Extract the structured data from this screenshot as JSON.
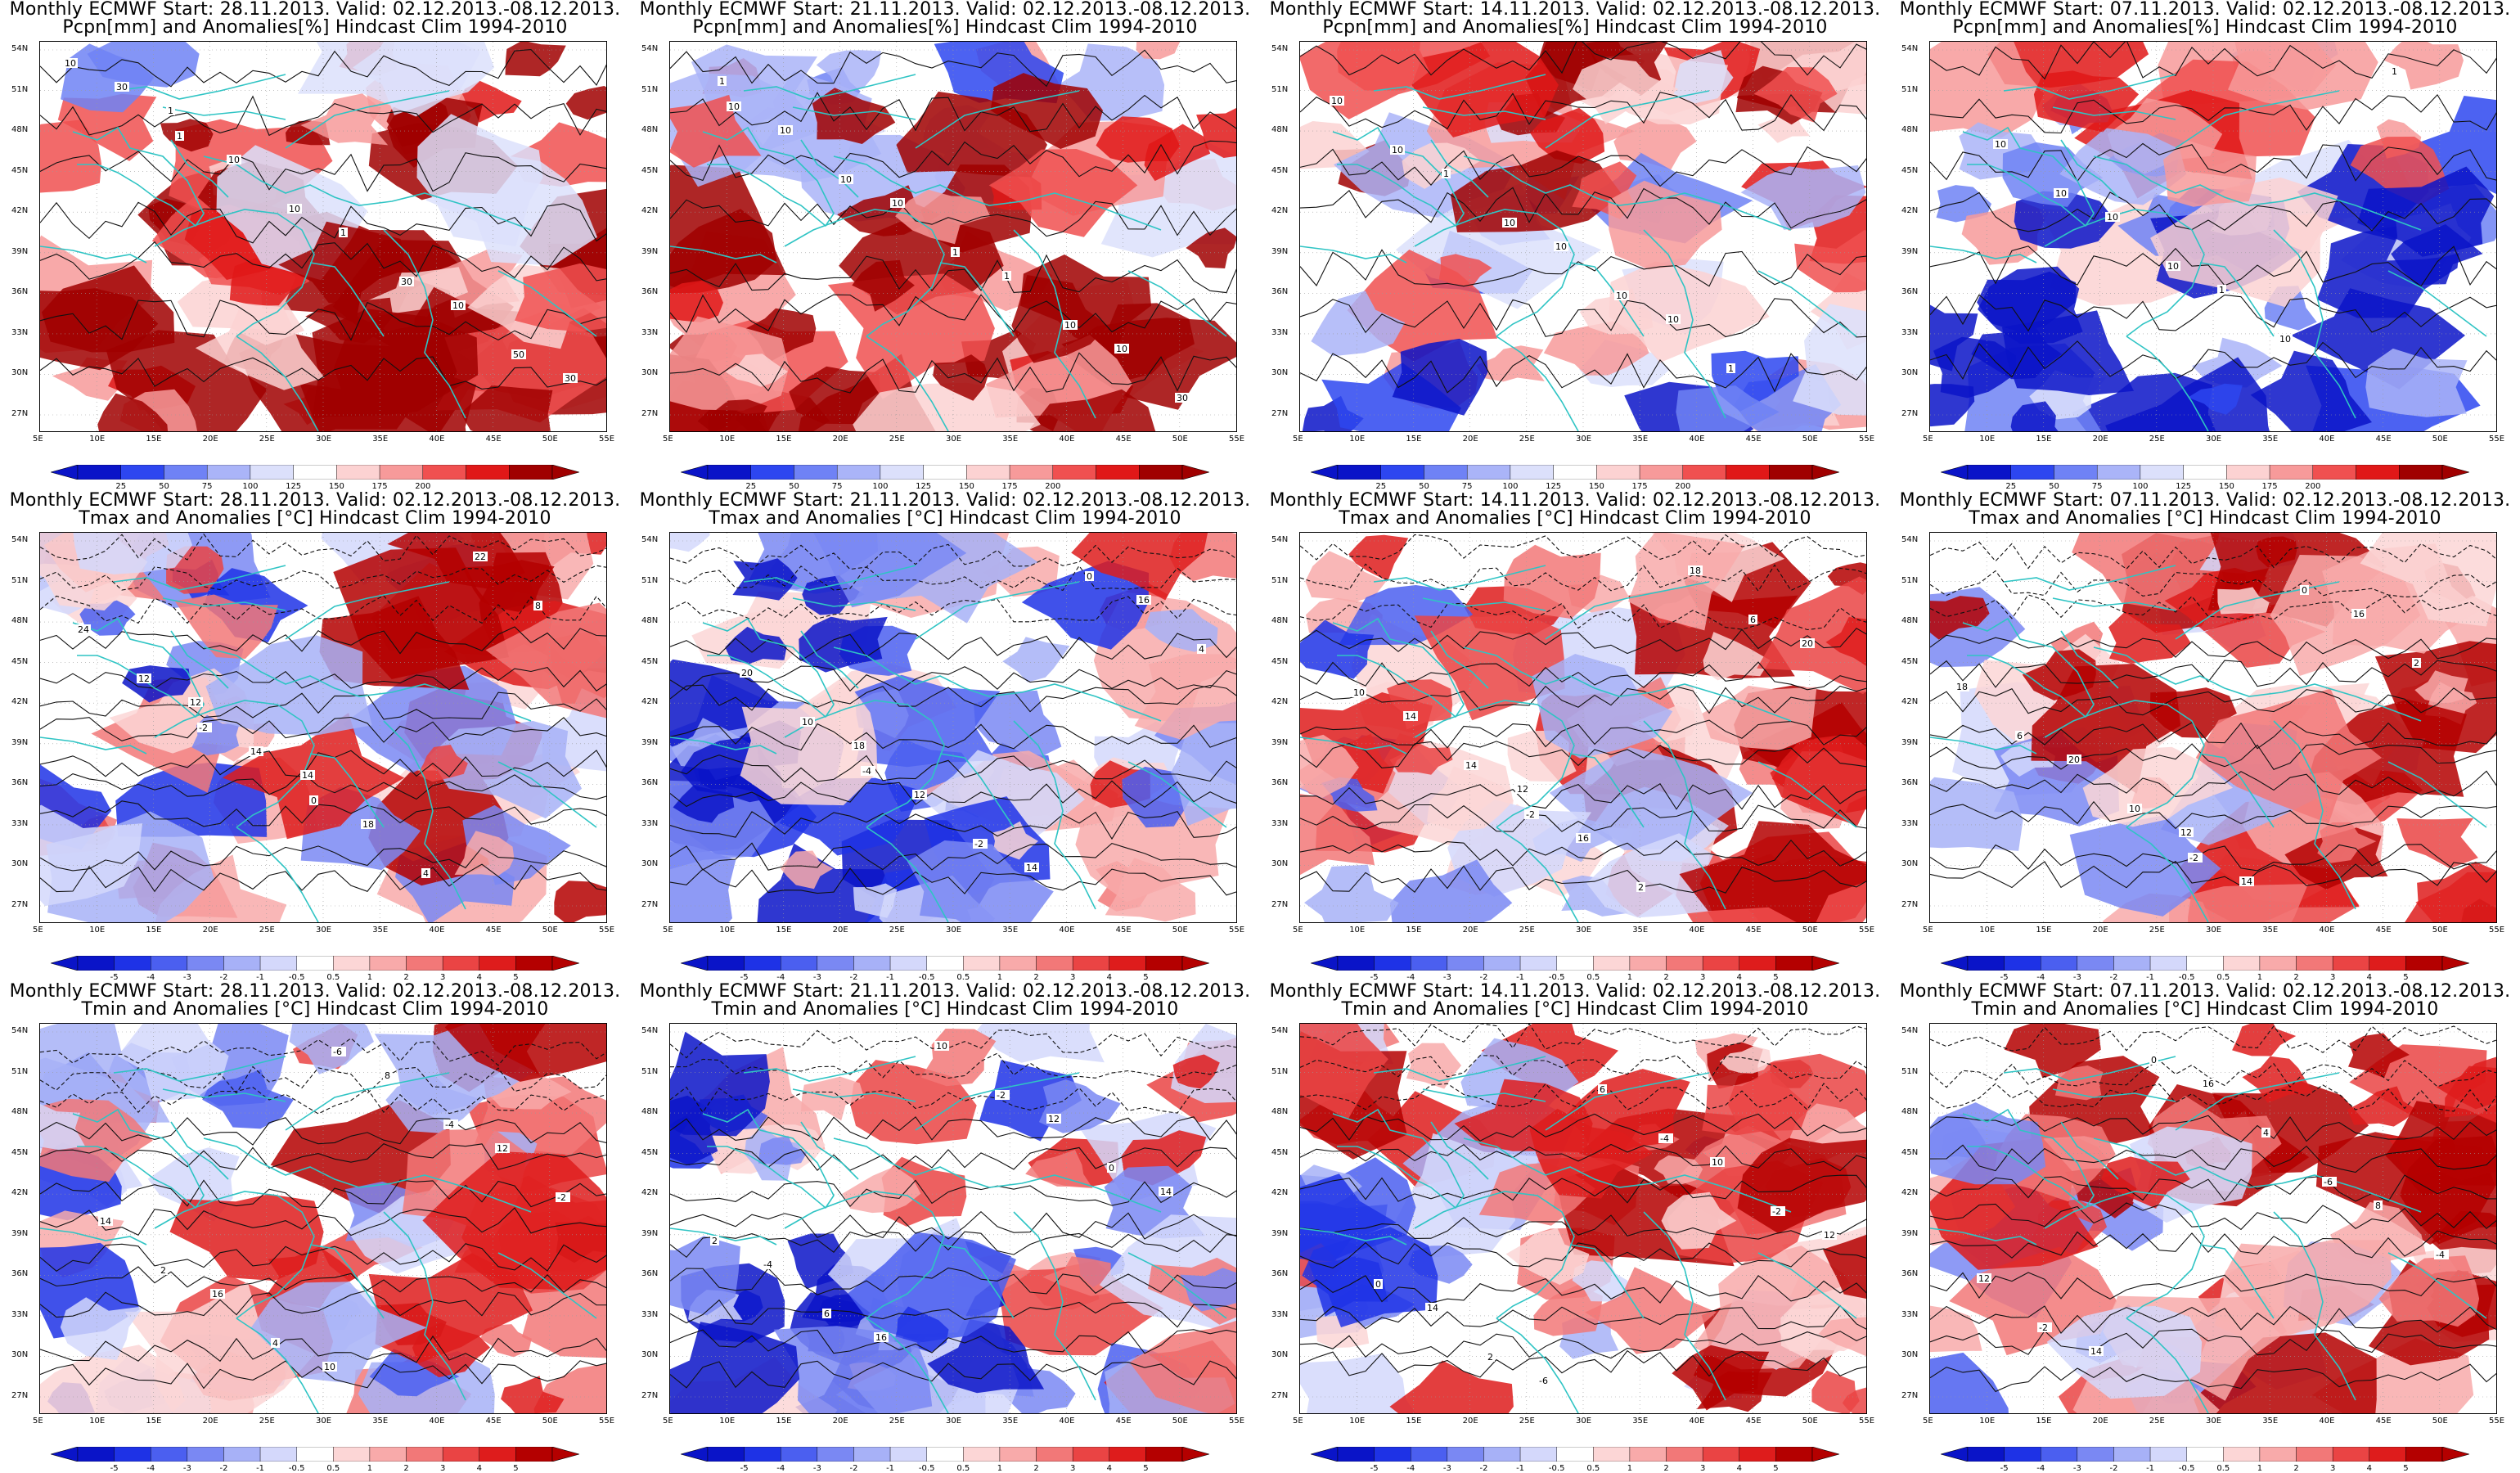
{
  "figure": {
    "layout": "3 rows x 4 columns",
    "lat_ticks": [
      "54N",
      "51N",
      "48N",
      "45N",
      "42N",
      "39N",
      "36N",
      "33N",
      "30N",
      "27N"
    ],
    "lon_ticks": [
      "5E",
      "10E",
      "15E",
      "20E",
      "25E",
      "30E",
      "35E",
      "40E",
      "45E",
      "50E",
      "55E"
    ],
    "coastline_color": "#2fc4c4"
  },
  "rows": [
    {
      "field": "precipitation",
      "title_line2": "Pcpn[mm] and Anomalies[%] Hindcast Clim 1994-2010",
      "colorbar": {
        "labels": [
          "25",
          "50",
          "75",
          "100",
          "125",
          "150",
          "175",
          "200"
        ],
        "colors": [
          "#0a14c8",
          "#2d46f0",
          "#6f82f5",
          "#aab4f8",
          "#dce0fb",
          "#ffffff",
          "#fcd2d2",
          "#f79a9a",
          "#f05050",
          "#e01818",
          "#a00000"
        ]
      }
    },
    {
      "field": "tmax",
      "title_line2": "Tmax and Anomalies [°C] Hindcast Clim 1994-2010",
      "colorbar": {
        "labels": [
          "-5",
          "-4",
          "-3",
          "-2",
          "-1",
          "-0.5",
          "0.5",
          "1",
          "2",
          "3",
          "4",
          "5"
        ],
        "colors": [
          "#0a14c8",
          "#1e32e6",
          "#4b5ff0",
          "#7a88f3",
          "#a7b1f7",
          "#d4d8fb",
          "#ffffff",
          "#fcd6d6",
          "#f8aaaa",
          "#f27878",
          "#ea4444",
          "#de1c1c",
          "#b40000"
        ]
      }
    },
    {
      "field": "tmin",
      "title_line2": "Tmin and Anomalies [°C] Hindcast Clim 1994-2010",
      "colorbar": {
        "labels": [
          "-5",
          "-4",
          "-3",
          "-2",
          "-1",
          "-0.5",
          "0.5",
          "1",
          "2",
          "3",
          "4",
          "5"
        ],
        "colors": [
          "#0a14c8",
          "#1e32e6",
          "#4b5ff0",
          "#7a88f3",
          "#a7b1f7",
          "#d4d8fb",
          "#ffffff",
          "#fcd6d6",
          "#f8aaaa",
          "#f27878",
          "#ea4444",
          "#de1c1c",
          "#b40000"
        ]
      }
    }
  ],
  "columns": [
    {
      "title_line1": "Monthly ECMWF Start: 28.11.2013. Valid: 02.12.2013.-08.12.2013."
    },
    {
      "title_line1": "Monthly ECMWF Start: 21.11.2013. Valid: 02.12.2013.-08.12.2013."
    },
    {
      "title_line1": "Monthly ECMWF Start: 14.11.2013. Valid: 02.12.2013.-08.12.2013."
    },
    {
      "title_line1": "Monthly ECMWF Start: 07.11.2013. Valid: 02.12.2013.-08.12.2013."
    }
  ],
  "panels": [
    {
      "row": 0,
      "col": 0,
      "anomaly_level": 0.55,
      "contour_labels": [
        "10",
        "1",
        "10",
        "30",
        "50",
        "30",
        "10",
        "1",
        "10",
        "30",
        "1"
      ]
    },
    {
      "row": 0,
      "col": 1,
      "anomaly_level": 0.45,
      "contour_labels": [
        "10",
        "10",
        "1",
        "10",
        "30",
        "10",
        "10",
        "1",
        "10",
        "1"
      ]
    },
    {
      "row": 0,
      "col": 2,
      "anomaly_level": 0.15,
      "contour_labels": [
        "10",
        "10",
        "10",
        "1",
        "10",
        "1",
        "10",
        "10"
      ]
    },
    {
      "row": 0,
      "col": 3,
      "anomaly_level": -0.35,
      "contour_labels": [
        "10",
        "10",
        "10",
        "1",
        "10",
        "10",
        "1"
      ]
    },
    {
      "row": 1,
      "col": 0,
      "anomaly_level": 0.1,
      "contour_labels": [
        "-2",
        "0",
        "4",
        "8",
        "12",
        "14",
        "18",
        "22",
        "24",
        "12",
        "14"
      ]
    },
    {
      "row": 1,
      "col": 1,
      "anomaly_level": -0.25,
      "contour_labels": [
        "-4",
        "-2",
        "0",
        "4",
        "10",
        "12",
        "14",
        "16",
        "20",
        "18"
      ]
    },
    {
      "row": 1,
      "col": 2,
      "anomaly_level": 0.3,
      "contour_labels": [
        "-2",
        "2",
        "6",
        "10",
        "14",
        "16",
        "18",
        "20",
        "14",
        "12"
      ]
    },
    {
      "row": 1,
      "col": 3,
      "anomaly_level": 0.45,
      "contour_labels": [
        "-2",
        "0",
        "2",
        "6",
        "10",
        "14",
        "16",
        "18",
        "20",
        "12"
      ]
    },
    {
      "row": 2,
      "col": 0,
      "anomaly_level": 0.2,
      "contour_labels": [
        "-6",
        "-4",
        "-2",
        "2",
        "4",
        "8",
        "12",
        "14",
        "16",
        "10"
      ]
    },
    {
      "row": 2,
      "col": 1,
      "anomaly_level": -0.15,
      "contour_labels": [
        "-2",
        "0",
        "2",
        "6",
        "10",
        "12",
        "14",
        "-4",
        "16"
      ]
    },
    {
      "row": 2,
      "col": 2,
      "anomaly_level": 0.3,
      "contour_labels": [
        "-4",
        "-2",
        "0",
        "2",
        "6",
        "10",
        "12",
        "14",
        "-6"
      ]
    },
    {
      "row": 2,
      "col": 3,
      "anomaly_level": 0.35,
      "contour_labels": [
        "-6",
        "-4",
        "-2",
        "0",
        "4",
        "8",
        "12",
        "14",
        "16"
      ]
    }
  ]
}
